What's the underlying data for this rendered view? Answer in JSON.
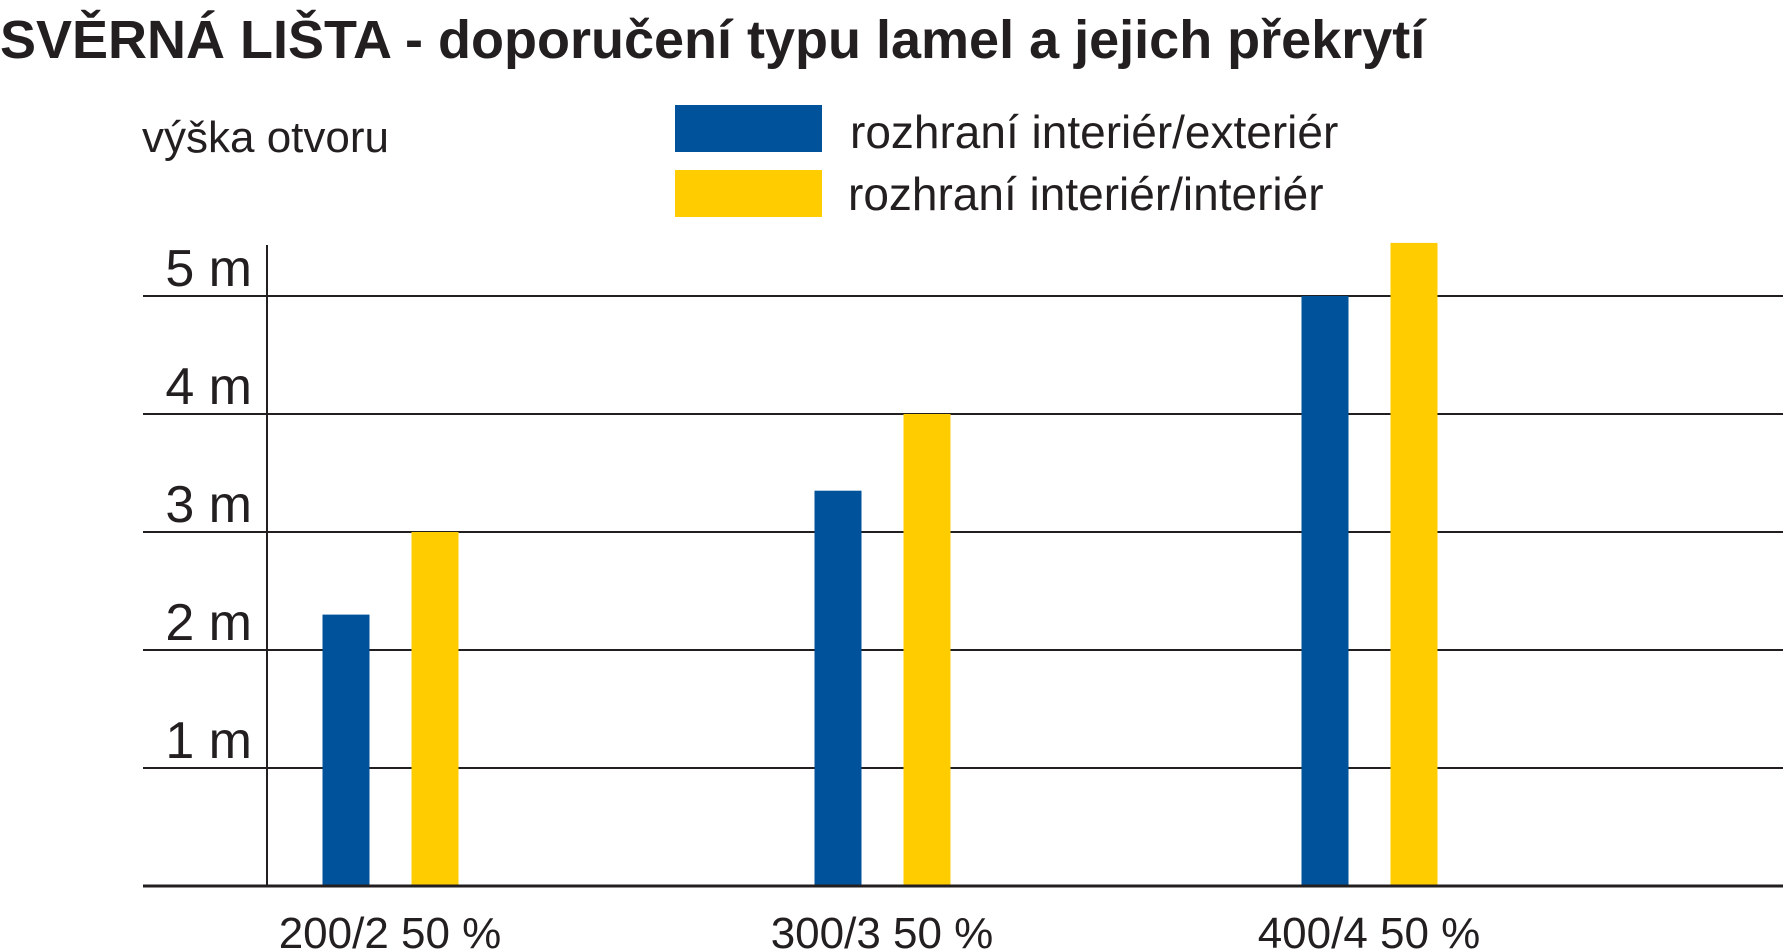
{
  "chart_data": {
    "type": "bar",
    "title": "SVĚRNÁ LIŠTA - doporučení typu lamel a jejich překrytí",
    "ylabel": "výška otvoru",
    "xlabel": "",
    "categories": [
      "200/2 50 %",
      "300/3 50 %",
      "400/4 50 %"
    ],
    "series": [
      {
        "name": "rozhraní interiér/exteriér",
        "color": "#00529b",
        "values": [
          2.3,
          3.35,
          5.0
        ]
      },
      {
        "name": "rozhraní interiér/interiér",
        "color": "#ffcc00",
        "values": [
          3.0,
          4.0,
          5.45
        ]
      }
    ],
    "y_ticks": [
      {
        "value": 1,
        "label": "1 m"
      },
      {
        "value": 2,
        "label": "2 m"
      },
      {
        "value": 3,
        "label": "3 m"
      },
      {
        "value": 4,
        "label": "4 m"
      },
      {
        "value": 5,
        "label": "5 m"
      }
    ],
    "ylim": [
      0,
      5.45
    ],
    "grid": true,
    "legend_position": "top-center"
  }
}
